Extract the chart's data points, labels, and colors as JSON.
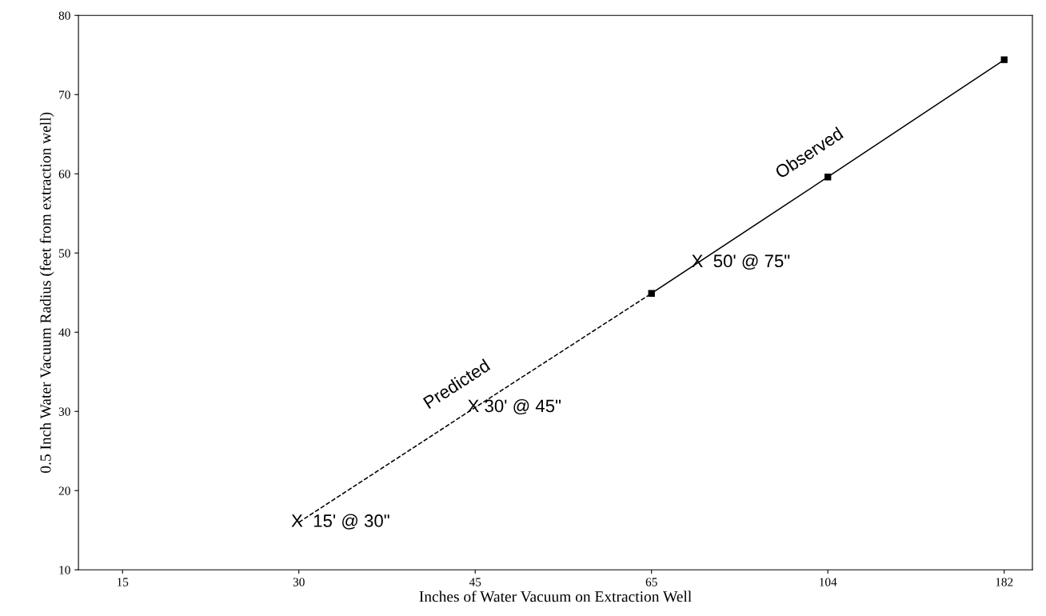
{
  "chart_data": {
    "type": "line",
    "xlabel": "Inches of Water Vacuum on Extraction Well",
    "ylabel": "0.5 Inch Water Vacuum Radius (feet from extraction well)",
    "categories": [
      "15",
      "30",
      "45",
      "65",
      "104",
      "182"
    ],
    "series": [
      {
        "name": "Predicted",
        "color": "#000000",
        "line_style": "dashed",
        "marker": "none",
        "values": [
          null,
          16,
          30.5,
          44.9,
          null,
          null
        ]
      },
      {
        "name": "Observed",
        "color": "#000000",
        "line_style": "solid",
        "marker": "square",
        "values": [
          null,
          null,
          null,
          44.9,
          59.6,
          74.4
        ]
      }
    ],
    "annotations": [
      {
        "text": "X  15' @ 30\"",
        "x": "30",
        "y": 16
      },
      {
        "text": "X 30' @ 45\"",
        "x": "45",
        "y": 30.5
      },
      "X  50' @ 75\""
    ],
    "ylim": [
      10,
      80
    ],
    "yticks": [
      10,
      20,
      30,
      40,
      50,
      60,
      70,
      80
    ],
    "grid": false,
    "legend": false
  }
}
